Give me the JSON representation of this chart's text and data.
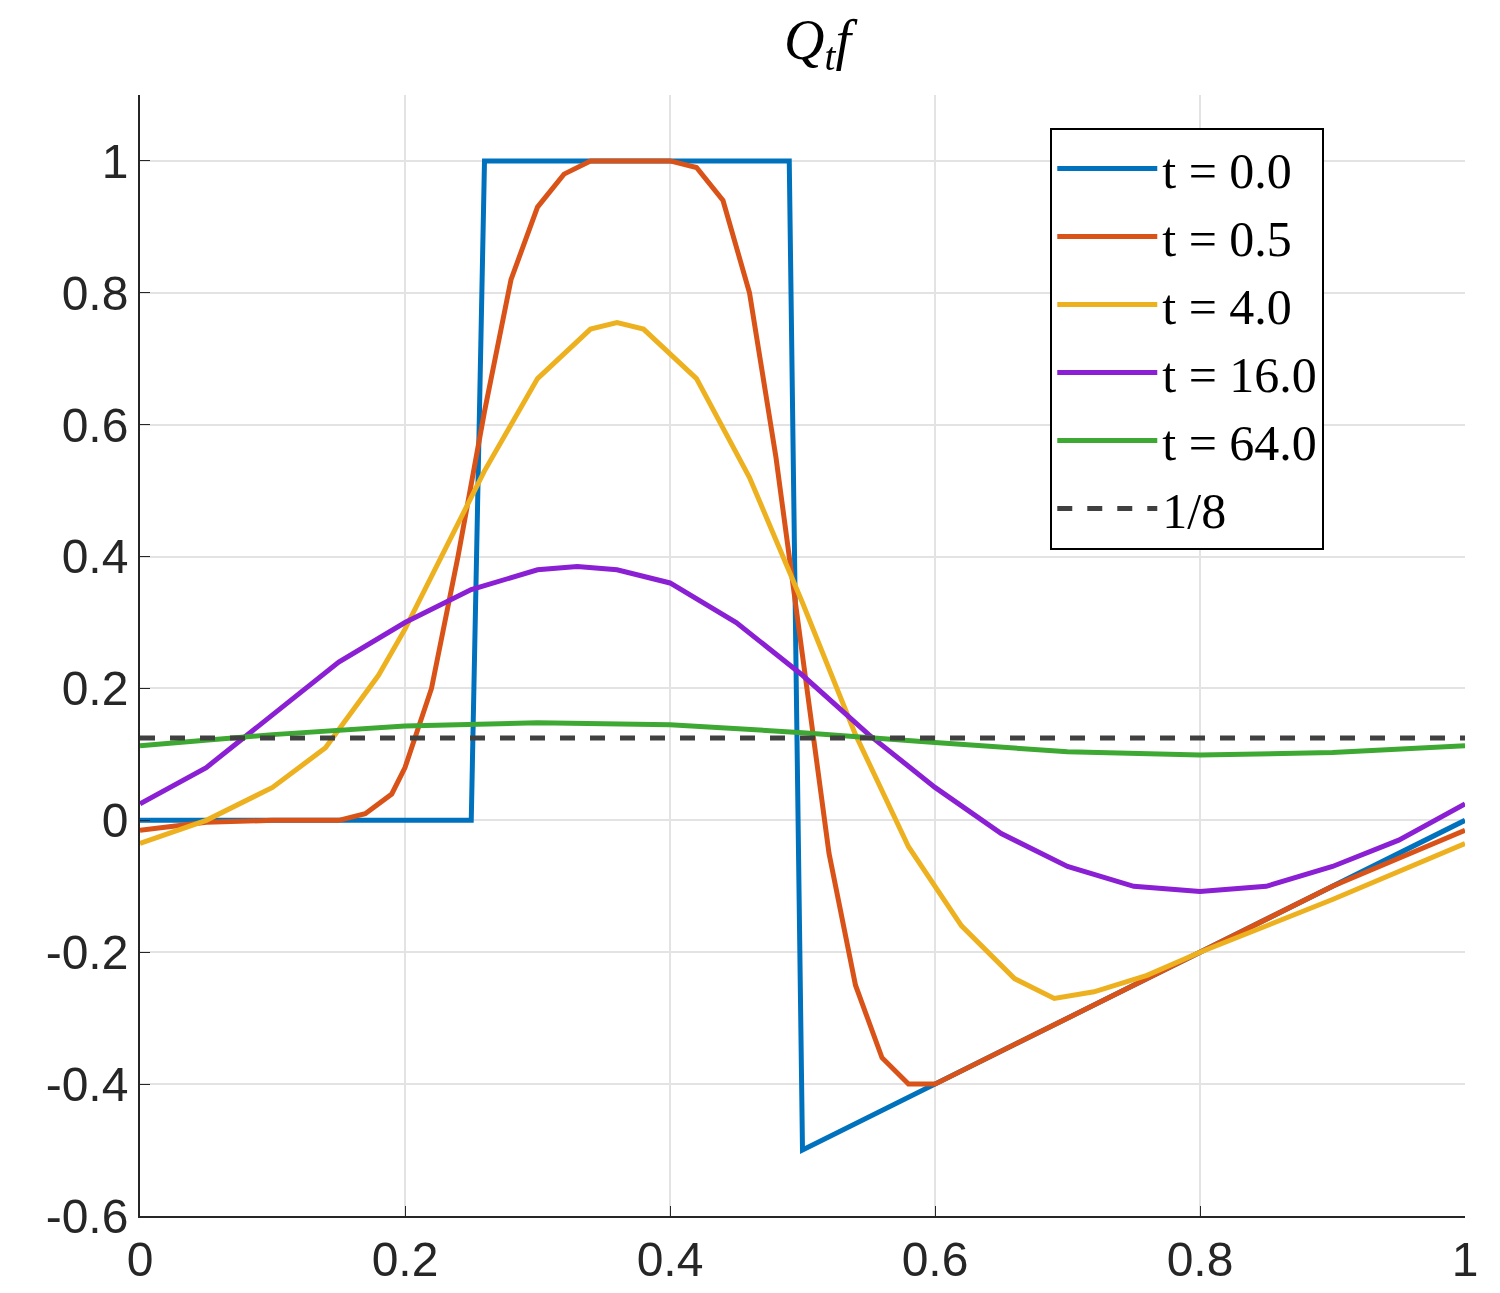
{
  "chart_data": {
    "type": "line",
    "title": "Q$_{t}$f",
    "xlim": [
      0,
      1
    ],
    "ylim": [
      -0.6,
      1.1
    ],
    "xticks": [
      0,
      0.2,
      0.4,
      0.6,
      0.8,
      1
    ],
    "yticks": [
      -0.6,
      -0.4,
      -0.2,
      0,
      0.2,
      0.4,
      0.6,
      0.8,
      1
    ],
    "grid": true,
    "legend": "top right",
    "marker": "none",
    "series": [
      {
        "name": "t = 0.0",
        "color": "#0072bd",
        "x": [
          0,
          0.25,
          0.26,
          0.49,
          0.5,
          1
        ],
        "values": [
          0,
          0,
          1,
          1,
          -0.5,
          0
        ]
      },
      {
        "name": "t = 0.5",
        "color": "#d95319",
        "x": [
          0,
          0.05,
          0.1,
          0.15,
          0.17,
          0.19,
          0.2,
          0.22,
          0.24,
          0.26,
          0.28,
          0.3,
          0.32,
          0.34,
          0.4,
          0.42,
          0.44,
          0.46,
          0.48,
          0.5,
          0.52,
          0.54,
          0.56,
          0.58,
          0.6,
          0.7,
          0.8,
          0.9,
          1
        ],
        "values": [
          -0.015,
          -0.003,
          0,
          0,
          0.01,
          0.04,
          0.08,
          0.2,
          0.4,
          0.62,
          0.82,
          0.93,
          0.98,
          1,
          1,
          0.99,
          0.94,
          0.8,
          0.55,
          0.25,
          -0.05,
          -0.25,
          -0.36,
          -0.4,
          -0.4,
          -0.3,
          -0.2,
          -0.1,
          -0.015
        ]
      },
      {
        "name": "t = 4.0",
        "color": "#edb120",
        "x": [
          0,
          0.05,
          0.1,
          0.14,
          0.18,
          0.2,
          0.22,
          0.26,
          0.3,
          0.34,
          0.36,
          0.38,
          0.42,
          0.46,
          0.5,
          0.54,
          0.58,
          0.62,
          0.66,
          0.69,
          0.72,
          0.76,
          0.8,
          0.9,
          1
        ],
        "values": [
          -0.035,
          0,
          0.05,
          0.11,
          0.22,
          0.29,
          0.37,
          0.53,
          0.67,
          0.745,
          0.755,
          0.745,
          0.67,
          0.52,
          0.33,
          0.13,
          -0.04,
          -0.16,
          -0.24,
          -0.27,
          -0.26,
          -0.235,
          -0.2,
          -0.12,
          -0.035
        ]
      },
      {
        "name": "t = 16.0",
        "color": "#8a1fd4",
        "x": [
          0,
          0.05,
          0.1,
          0.15,
          0.2,
          0.25,
          0.3,
          0.33,
          0.36,
          0.4,
          0.45,
          0.5,
          0.55,
          0.6,
          0.65,
          0.7,
          0.75,
          0.8,
          0.85,
          0.9,
          0.95,
          1
        ],
        "values": [
          0.025,
          0.08,
          0.16,
          0.24,
          0.3,
          0.35,
          0.38,
          0.385,
          0.38,
          0.36,
          0.3,
          0.22,
          0.13,
          0.05,
          -0.02,
          -0.07,
          -0.1,
          -0.108,
          -0.1,
          -0.07,
          -0.03,
          0.025
        ]
      },
      {
        "name": "t = 64.0",
        "color": "#3da832",
        "x": [
          0,
          0.1,
          0.2,
          0.3,
          0.4,
          0.5,
          0.6,
          0.7,
          0.8,
          0.9,
          1
        ],
        "values": [
          0.113,
          0.13,
          0.143,
          0.148,
          0.145,
          0.133,
          0.118,
          0.104,
          0.099,
          0.103,
          0.113
        ]
      },
      {
        "name": "1/8",
        "color": "#404040",
        "line_style": "dashed",
        "x": [
          0,
          1
        ],
        "values": [
          0.125,
          0.125
        ]
      }
    ]
  }
}
